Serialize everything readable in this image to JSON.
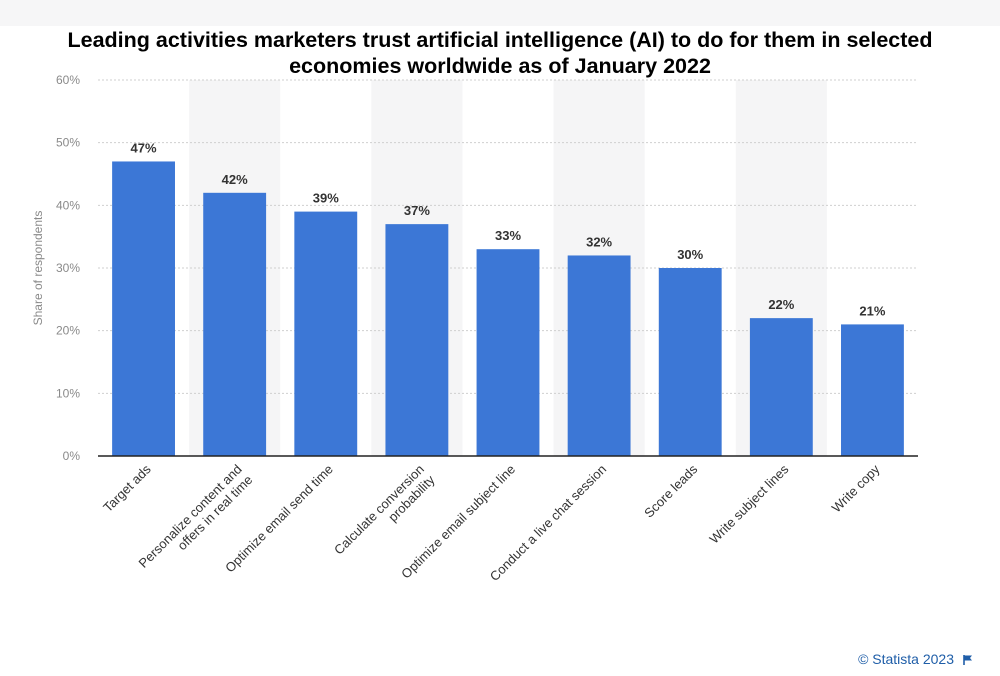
{
  "chart_data": {
    "type": "bar",
    "title": "Leading activities marketers trust artificial intelligence (AI) to do for them in selected economies worldwide as of January 2022",
    "xlabel": "",
    "ylabel": "Share of respondents",
    "categories": [
      "Target ads",
      "Personalize content and offers in real time",
      "Optimize email send time",
      "Calculate conversion probability",
      "Optimize email subject line",
      "Conduct a live chat session",
      "Score leads",
      "Write subject lines",
      "Write copy"
    ],
    "category_lines": [
      [
        "Target ads"
      ],
      [
        "Personalize content and",
        "offers in real time"
      ],
      [
        "Optimize email send time"
      ],
      [
        "Calculate conversion",
        "probability"
      ],
      [
        "Optimize email subject line"
      ],
      [
        "Conduct a live chat session"
      ],
      [
        "Score leads"
      ],
      [
        "Write subject lines"
      ],
      [
        "Write copy"
      ]
    ],
    "values": [
      47,
      42,
      39,
      37,
      33,
      32,
      30,
      22,
      21
    ],
    "data_labels": [
      "47%",
      "42%",
      "39%",
      "37%",
      "33%",
      "32%",
      "30%",
      "22%",
      "21%"
    ],
    "yticks": [
      "0%",
      "10%",
      "20%",
      "30%",
      "40%",
      "50%",
      "60%"
    ],
    "ylim": [
      0,
      60
    ],
    "grid": true,
    "legend": "none",
    "colors": {
      "bar": "#3c77d6",
      "band": "#f5f5f6",
      "grid": "#cfcfcf",
      "axis": "#222222",
      "tick_text": "#8a8a8a",
      "label_text": "#333333"
    }
  },
  "footer": {
    "credit": "© Statista 2023",
    "credit_icon": "flag-icon",
    "credit_color": "#1f5ea8"
  }
}
